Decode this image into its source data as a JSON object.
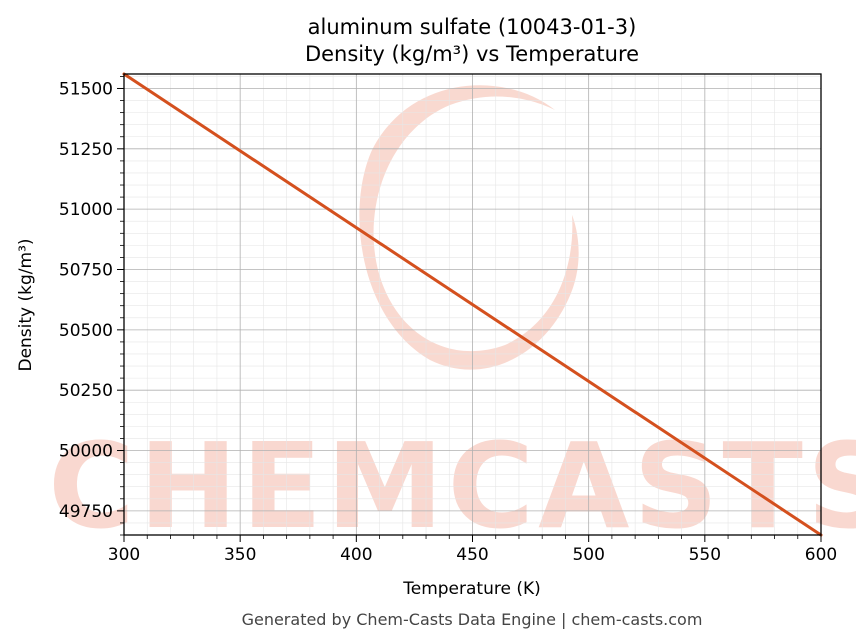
{
  "chart_data": {
    "type": "line",
    "title_line1": "aluminum sulfate (10043-01-3)",
    "title_line2": "Density (kg/m³) vs Temperature",
    "xlabel": "Temperature (K)",
    "ylabel": "Density (kg/m³)",
    "xlim": [
      300,
      600
    ],
    "ylim": [
      49650,
      51560
    ],
    "x_ticks": [
      300,
      350,
      400,
      450,
      500,
      550,
      600
    ],
    "y_ticks": [
      49750,
      50000,
      50250,
      50500,
      50750,
      51000,
      51250,
      51500
    ],
    "grid": true,
    "series": [
      {
        "color": "#d4501e",
        "x": [
          300,
          600
        ],
        "y": [
          51560,
          49650
        ]
      }
    ]
  },
  "watermark": {
    "text": "CHEMCASTS"
  },
  "footer": "Generated by Chem-Casts Data Engine | chem-casts.com"
}
